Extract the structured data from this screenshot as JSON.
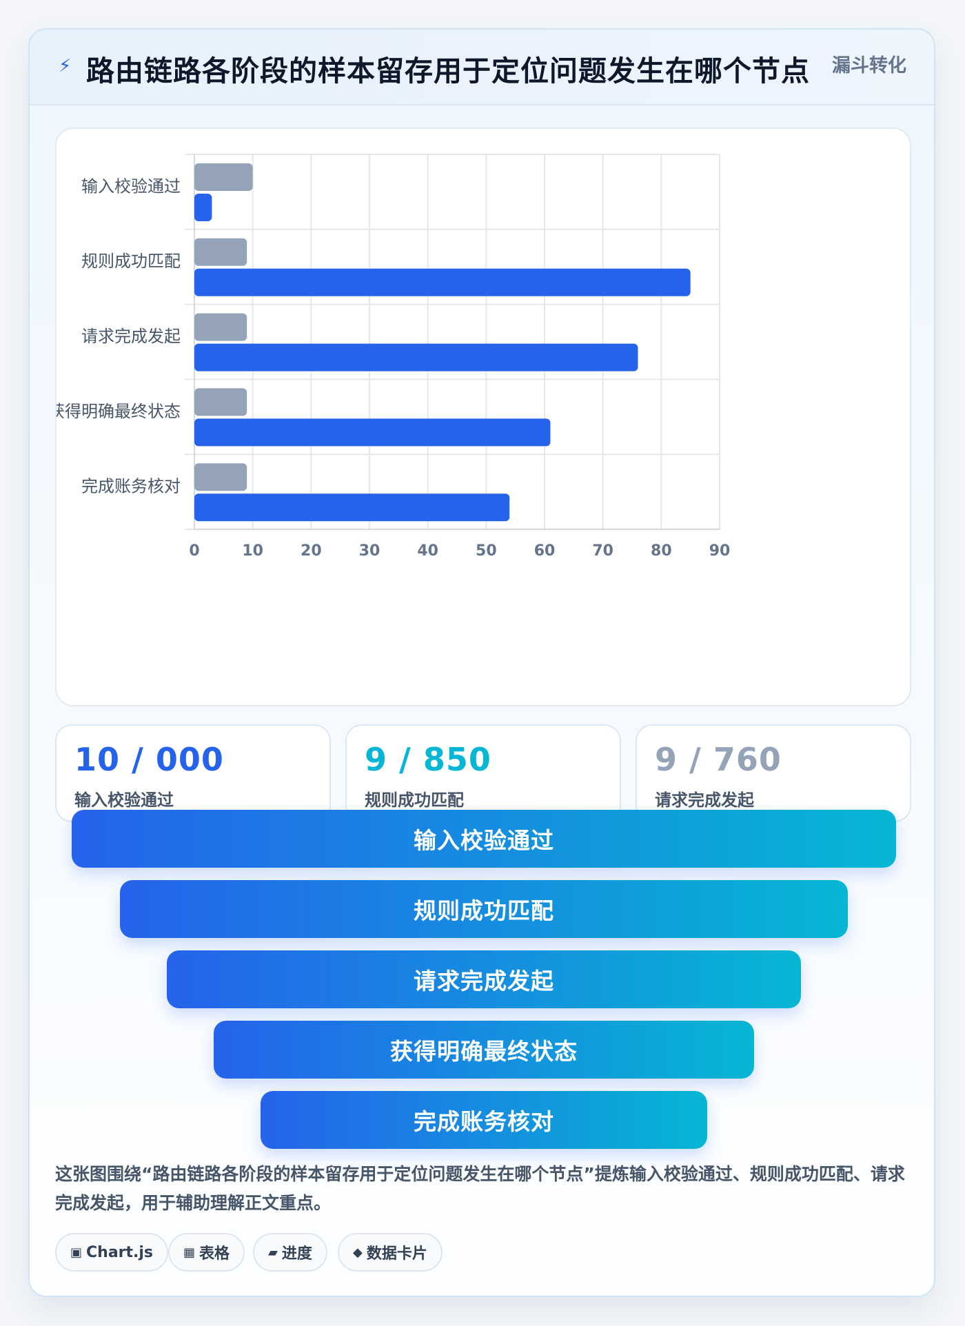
{
  "header": {
    "icon": "lightning-icon",
    "title": "路由链路各阶段的样本留存用于定位问题发生在哪个节点",
    "tag": "漏斗转化"
  },
  "chart_data": {
    "type": "bar",
    "orientation": "horizontal",
    "categories": [
      "输入校验通过",
      "规则成功匹配",
      "请求完成发起",
      "获得明确最终状态",
      "完成账务核对"
    ],
    "series": [
      {
        "values": [
          10,
          9,
          9,
          9,
          9
        ],
        "color": "#94a3b8"
      },
      {
        "values": [
          3,
          85,
          76,
          61,
          54
        ],
        "color": "#2563eb"
      }
    ],
    "xlim": [
      0,
      90
    ],
    "xticks": [
      0,
      10,
      20,
      30,
      40,
      50,
      60,
      70,
      80,
      90
    ],
    "grid": true,
    "legend": "none"
  },
  "stats": [
    {
      "value": "10 / 000",
      "label": "输入校验通过",
      "color": "#2563eb"
    },
    {
      "value": "9 / 850",
      "label": "规则成功匹配",
      "color": "#06b6d4"
    },
    {
      "value": "9 / 760",
      "label": "请求完成发起",
      "color": "#94a3b8"
    }
  ],
  "funnel": [
    {
      "label": "输入校验通过"
    },
    {
      "label": "规则成功匹配"
    },
    {
      "label": "请求完成发起"
    },
    {
      "label": "获得明确最终状态"
    },
    {
      "label": "完成账务核对"
    }
  ],
  "description": "这张图围绕“路由链路各阶段的样本留存用于定位问题发生在哪个节点”提炼输入校验通过、规则成功匹配、请求完成发起，用于辅助理解正文重点。",
  "chips": [
    {
      "icon": "chart-icon",
      "glyph": "▣",
      "label": "Chart.js"
    },
    {
      "icon": "table-icon",
      "glyph": "▦",
      "label": "表格"
    },
    {
      "icon": "progress-icon",
      "glyph": "▰",
      "label": "进度"
    },
    {
      "icon": "diamond-icon",
      "glyph": "◆",
      "label": "数据卡片"
    }
  ]
}
